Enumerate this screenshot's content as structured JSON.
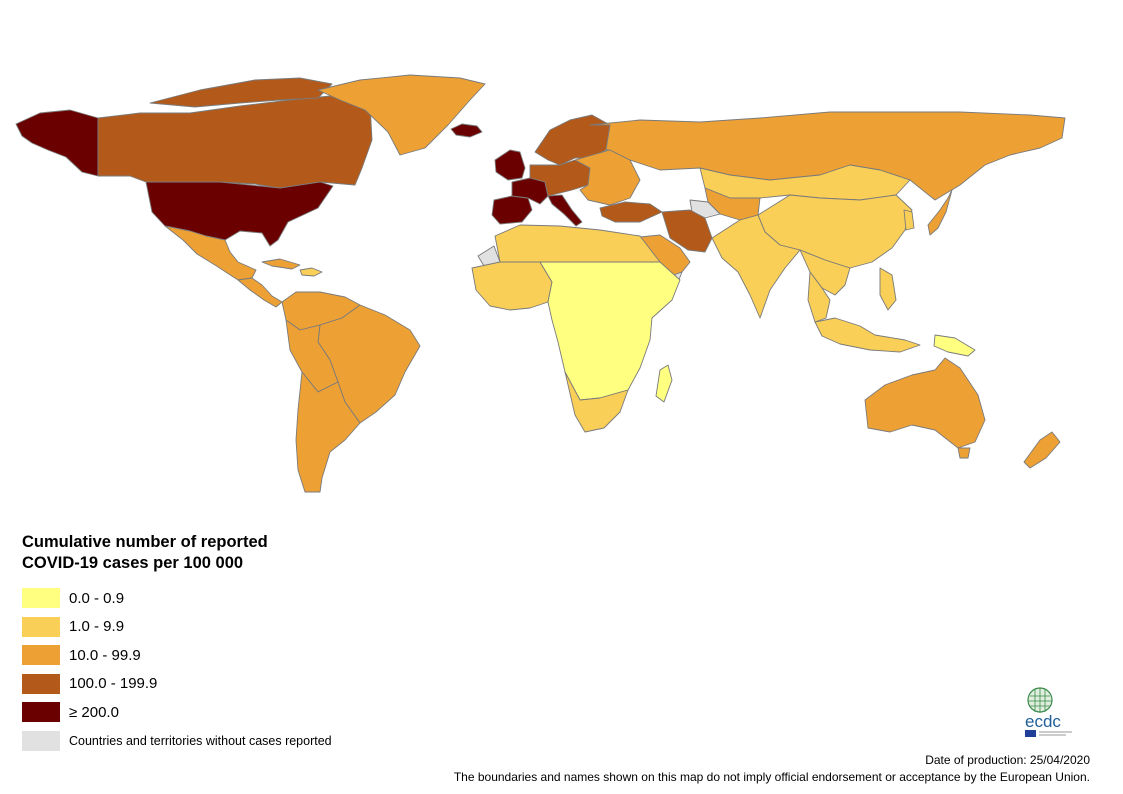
{
  "legend": {
    "title_line1": "Cumulative number of reported",
    "title_line2": "COVID-19 cases per 100 000",
    "items": [
      {
        "label": "0.0 - 0.9",
        "color": "#ffff80"
      },
      {
        "label": "1.0 - 9.9",
        "color": "#f9cf57"
      },
      {
        "label": "10.0 - 99.9",
        "color": "#eda135"
      },
      {
        "label": "100.0 - 199.9",
        "color": "#b3591a"
      },
      {
        "label": "≥ 200.0",
        "color": "#6b0000"
      },
      {
        "label": "Countries and territories without cases reported",
        "color": "#e1e1e1"
      }
    ]
  },
  "logo": {
    "text": "ecdc",
    "icon": "ecdc-globe-logo"
  },
  "footer": {
    "date": "Date of production: 25/04/2020",
    "disclaimer": "The boundaries and names shown on this map do not imply official endorsement or acceptance by the European Union."
  },
  "colors": {
    "border": "#7a7a7a"
  },
  "map_regions": [
    {
      "name": "Alaska",
      "color": "#6b0000"
    },
    {
      "name": "Canada",
      "color": "#b3591a"
    },
    {
      "name": "Canadian Arctic islands",
      "color": "#b3591a"
    },
    {
      "name": "Greenland",
      "color": "#eda135"
    },
    {
      "name": "Iceland",
      "color": "#6b0000"
    },
    {
      "name": "United States",
      "color": "#6b0000"
    },
    {
      "name": "Mexico",
      "color": "#eda135"
    },
    {
      "name": "Central America",
      "color": "#eda135"
    },
    {
      "name": "Cuba",
      "color": "#eda135"
    },
    {
      "name": "Caribbean islands",
      "color": "#f9cf57"
    },
    {
      "name": "Colombia and Venezuela",
      "color": "#eda135"
    },
    {
      "name": "Brazil",
      "color": "#eda135"
    },
    {
      "name": "Peru and Bolivia",
      "color": "#eda135"
    },
    {
      "name": "Southern South America",
      "color": "#eda135"
    },
    {
      "name": "Norway, Sweden, Finland",
      "color": "#b3591a"
    },
    {
      "name": "United Kingdom and Ireland",
      "color": "#6b0000"
    },
    {
      "name": "Spain and Portugal",
      "color": "#6b0000"
    },
    {
      "name": "France",
      "color": "#6b0000"
    },
    {
      "name": "Central Europe",
      "color": "#b3591a"
    },
    {
      "name": "Italy",
      "color": "#6b0000"
    },
    {
      "name": "Eastern Europe",
      "color": "#eda135"
    },
    {
      "name": "Russia",
      "color": "#eda135"
    },
    {
      "name": "Turkey",
      "color": "#b3591a"
    },
    {
      "name": "Kazakhstan and Mongolia",
      "color": "#f9cf57"
    },
    {
      "name": "Central Asia",
      "color": "#eda135"
    },
    {
      "name": "Turkmenistan",
      "color": "#e1e1e1"
    },
    {
      "name": "Iran",
      "color": "#b3591a"
    },
    {
      "name": "Arabian Peninsula",
      "color": "#eda135"
    },
    {
      "name": "Yemen",
      "color": "#e1e1e1"
    },
    {
      "name": "China",
      "color": "#f9cf57"
    },
    {
      "name": "India and Pakistan",
      "color": "#f9cf57"
    },
    {
      "name": "Southeast Asia",
      "color": "#f9cf57"
    },
    {
      "name": "Thailand and Malaysia",
      "color": "#f9cf57"
    },
    {
      "name": "Japan",
      "color": "#eda135"
    },
    {
      "name": "Korea",
      "color": "#f9cf57"
    },
    {
      "name": "Philippines",
      "color": "#f9cf57"
    },
    {
      "name": "Indonesia",
      "color": "#f9cf57"
    },
    {
      "name": "New Guinea",
      "color": "#ffff80"
    },
    {
      "name": "North Africa",
      "color": "#f9cf57"
    },
    {
      "name": "Western Sahara",
      "color": "#e1e1e1"
    },
    {
      "name": "West Africa",
      "color": "#f9cf57"
    },
    {
      "name": "Central and East Africa",
      "color": "#ffff80"
    },
    {
      "name": "Southern Africa",
      "color": "#f9cf57"
    },
    {
      "name": "Madagascar",
      "color": "#ffff80"
    },
    {
      "name": "Australia",
      "color": "#eda135"
    },
    {
      "name": "Tasmania",
      "color": "#eda135"
    },
    {
      "name": "New Zealand",
      "color": "#eda135"
    }
  ]
}
